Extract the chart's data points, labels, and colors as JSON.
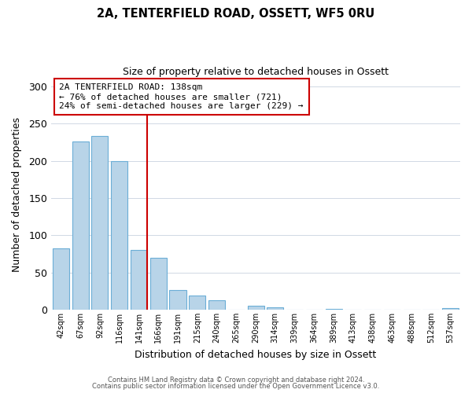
{
  "title": "2A, TENTERFIELD ROAD, OSSETT, WF5 0RU",
  "subtitle": "Size of property relative to detached houses in Ossett",
  "xlabel": "Distribution of detached houses by size in Ossett",
  "ylabel": "Number of detached properties",
  "bar_labels": [
    "42sqm",
    "67sqm",
    "92sqm",
    "116sqm",
    "141sqm",
    "166sqm",
    "191sqm",
    "215sqm",
    "240sqm",
    "265sqm",
    "290sqm",
    "314sqm",
    "339sqm",
    "364sqm",
    "389sqm",
    "413sqm",
    "438sqm",
    "463sqm",
    "488sqm",
    "512sqm",
    "537sqm"
  ],
  "bar_values": [
    82,
    226,
    233,
    200,
    80,
    70,
    26,
    19,
    13,
    0,
    5,
    3,
    0,
    0,
    1,
    0,
    0,
    0,
    0,
    0,
    2
  ],
  "bar_color": "#b8d4e8",
  "bar_edge_color": "#6baed6",
  "vline_x": 4,
  "vline_color": "#cc0000",
  "ylim": [
    0,
    310
  ],
  "yticks": [
    0,
    50,
    100,
    150,
    200,
    250,
    300
  ],
  "annotation_title": "2A TENTERFIELD ROAD: 138sqm",
  "annotation_line1": "← 76% of detached houses are smaller (721)",
  "annotation_line2": "24% of semi-detached houses are larger (229) →",
  "annotation_box_color": "#ffffff",
  "annotation_box_edge": "#cc0000",
  "footer1": "Contains HM Land Registry data © Crown copyright and database right 2024.",
  "footer2": "Contains public sector information licensed under the Open Government Licence v3.0.",
  "background_color": "#ffffff",
  "grid_color": "#d0d8e4"
}
